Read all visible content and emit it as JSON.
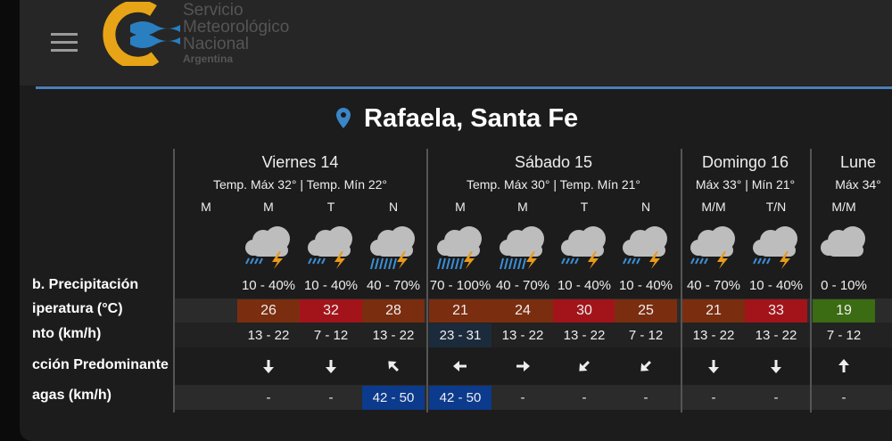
{
  "header": {
    "logo_text": [
      "Servicio",
      "Meteorológico",
      "Nacional",
      "Argentina"
    ]
  },
  "location": "Rafaela, Santa Fe",
  "row_labels": [
    "b. Precipitación",
    "iperatura (°C)",
    "nto (km/h)",
    "cción Predominante",
    "agas (km/h)"
  ],
  "days": [
    {
      "name": "Viernes 14",
      "summary": "Temp. Máx 32° | Temp. Mín 22°",
      "periods": [
        {
          "period": "M"
        },
        {
          "period": "M",
          "precipitation": "10 - 40%",
          "temperature": 26,
          "temperature_color": "#7a2d0f",
          "wind": "13 - 22",
          "gusts": "-"
        },
        {
          "period": "T",
          "precipitation": "10 - 40%",
          "temperature": 32,
          "temperature_color": "#a3141a",
          "wind": "7 - 12",
          "gusts": "-"
        },
        {
          "period": "N",
          "precipitation": "40 - 70%",
          "temperature": 28,
          "temperature_color": "#7a2d0f",
          "wind": "13 - 22",
          "gusts": "42 - 50",
          "gusts_color": "#0c3a8c"
        }
      ]
    },
    {
      "name": "Sábado 15",
      "summary": "Temp. Máx 30° | Temp. Mín 21°",
      "periods": [
        {
          "period": "M",
          "precipitation": "70 - 100%",
          "temperature": 21,
          "temperature_color": "#7a2d0f",
          "wind": "23 - 31",
          "wind_color": "#1c2b3b",
          "gusts": "42 - 50",
          "gusts_color": "#0c3a8c"
        },
        {
          "period": "M",
          "precipitation": "40 - 70%",
          "temperature": 24,
          "temperature_color": "#7a2d0f",
          "wind": "13 - 22",
          "gusts": "-"
        },
        {
          "period": "T",
          "precipitation": "10 - 40%",
          "temperature": 30,
          "temperature_color": "#a3141a",
          "wind": "13 - 22",
          "gusts": "-"
        },
        {
          "period": "N",
          "precipitation": "10 - 40%",
          "temperature": 25,
          "temperature_color": "#7a2d0f",
          "wind": "7 - 12",
          "gusts": "-"
        }
      ]
    },
    {
      "name": "Domingo 16",
      "summary": "Máx 33° | Mín 21°",
      "periods": [
        {
          "period": "M/M",
          "precipitation": "40 - 70%",
          "temperature": 21,
          "temperature_color": "#7a2d0f",
          "wind": "13 - 22",
          "gusts": "-"
        },
        {
          "period": "T/N",
          "precipitation": "10 - 40%",
          "temperature": 33,
          "temperature_color": "#a3141a",
          "wind": "13 - 22",
          "gusts": "-"
        }
      ]
    },
    {
      "name": "Lune",
      "summary": "Máx 34°",
      "periods": [
        {
          "period": "M/M",
          "precipitation": "0 - 10%",
          "temperature": 19,
          "temperature_color": "#3b6b12",
          "wind": "7 - 12",
          "gusts": "-"
        }
      ]
    }
  ]
}
